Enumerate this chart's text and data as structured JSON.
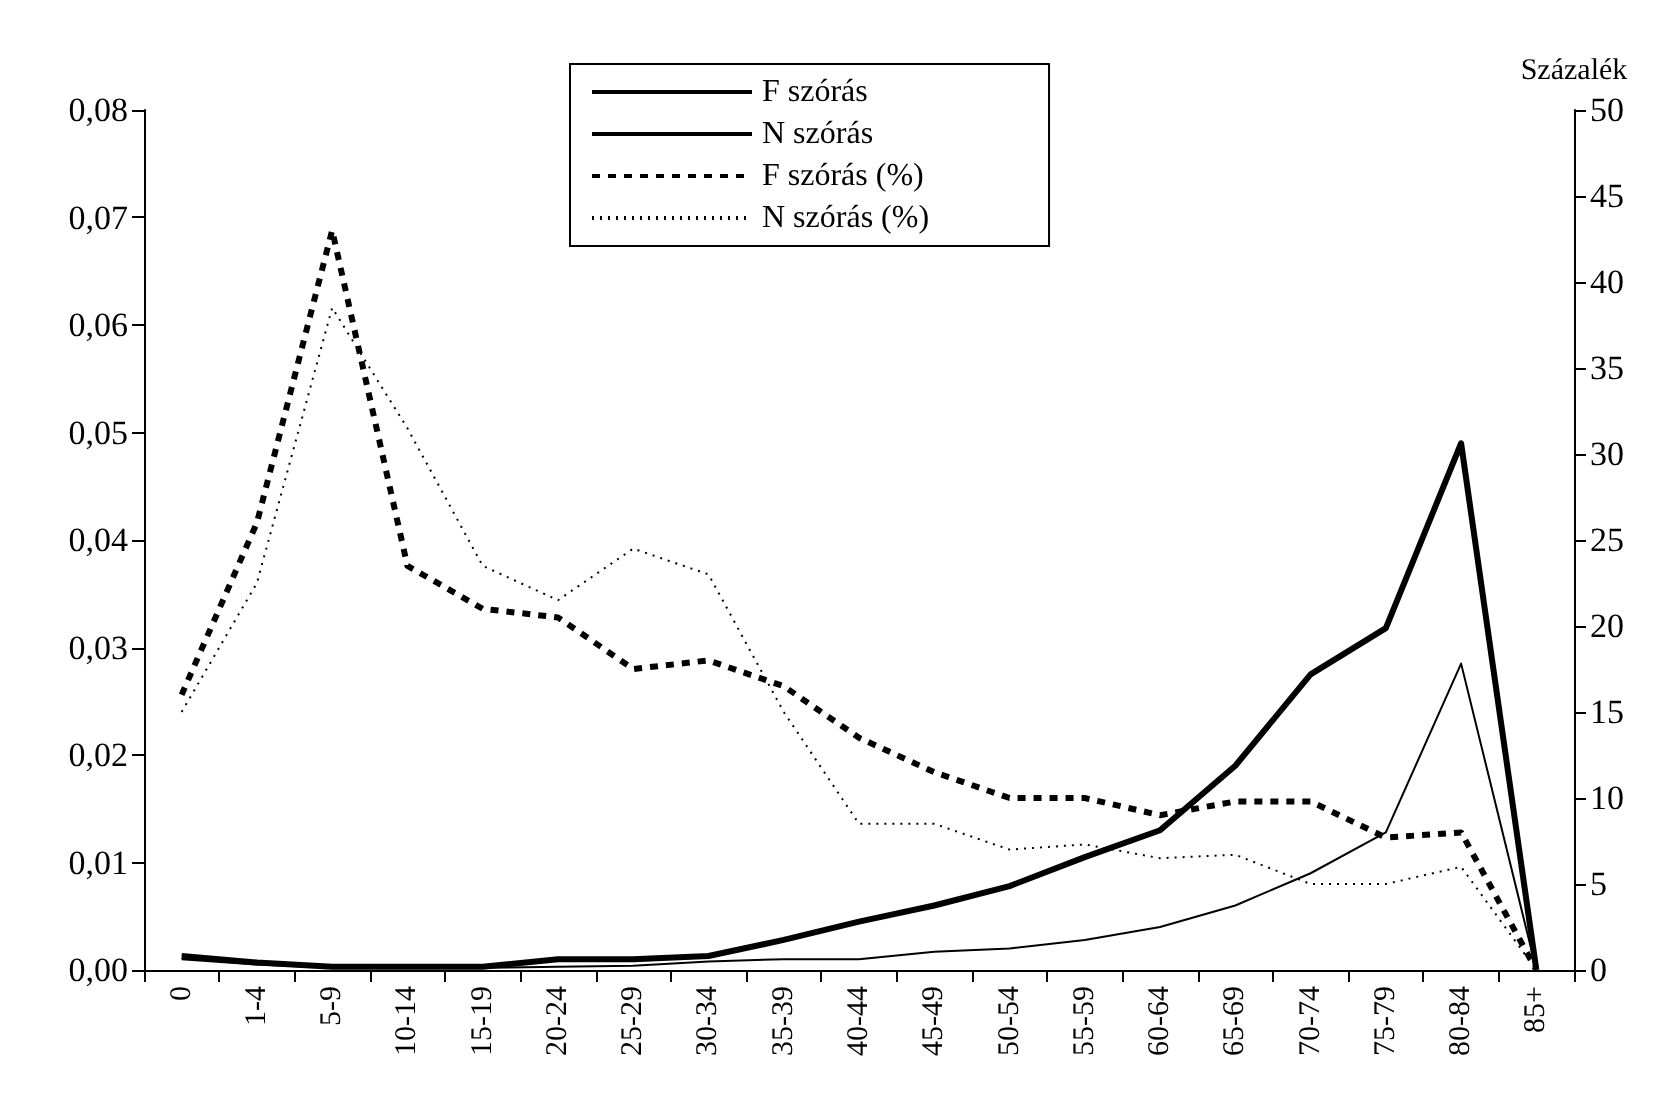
{
  "chart_data": {
    "type": "line",
    "y2label": "Százalék",
    "categories": [
      "0",
      "1-4",
      "5-9",
      "10-14",
      "15-19",
      "20-24",
      "25-29",
      "30-34",
      "35-39",
      "40-44",
      "45-49",
      "50-54",
      "55-59",
      "60-64",
      "65-69",
      "70-74",
      "75-79",
      "80-84",
      "85+"
    ],
    "series": [
      {
        "name": "F szórás",
        "color": "#000000",
        "line_style": "solid",
        "values": [
          0.0013,
          0.0007,
          0.0003,
          0.0003,
          0.0003,
          0.001,
          0.001,
          0.0013,
          0.0028,
          0.0045,
          0.006,
          0.0078,
          0.0105,
          0.013,
          0.019,
          0.0275,
          0.0318,
          0.049,
          0
        ]
      },
      {
        "name": "N szórás",
        "color": "#000000",
        "line_style": "solid",
        "values": [
          0.001,
          0.0005,
          0.0002,
          0.0002,
          0.0002,
          0.0003,
          0.0004,
          0.0008,
          0.001,
          0.001,
          0.0017,
          0.002,
          0.0028,
          0.004,
          0.006,
          0.009,
          0.0128,
          0.0285,
          0
        ]
      },
      {
        "name": "F szórás (%)",
        "color": "#000000",
        "line_style": "dashed",
        "axis": "y2",
        "values": [
          16,
          26,
          43,
          23.5,
          21,
          20.5,
          17.5,
          18,
          16.5,
          13.5,
          11.5,
          10,
          10,
          9,
          9.8,
          9.8,
          7.7,
          8,
          0
        ]
      },
      {
        "name": "N szórás (%)",
        "color": "#000000",
        "line_style": "dotted",
        "axis": "y2",
        "values": [
          15,
          22.5,
          38.5,
          31.5,
          23.5,
          21.5,
          24.5,
          23,
          15,
          8.5,
          8.5,
          7,
          7.3,
          6.5,
          6.7,
          5,
          5,
          6,
          0
        ]
      }
    ],
    "ylim": [
      0,
      0.08
    ],
    "yticks": [
      {
        "value": 0,
        "label": "0,00"
      },
      {
        "value": 0.01,
        "label": "0,01"
      },
      {
        "value": 0.02,
        "label": "0,02"
      },
      {
        "value": 0.03,
        "label": "0,03"
      },
      {
        "value": 0.04,
        "label": "0,04"
      },
      {
        "value": 0.05,
        "label": "0,05"
      },
      {
        "value": 0.06,
        "label": "0,06"
      },
      {
        "value": 0.07,
        "label": "0,07"
      },
      {
        "value": 0.08,
        "label": "0,08"
      }
    ],
    "y2lim": [
      0,
      50
    ],
    "y2ticks": [
      0,
      5,
      10,
      15,
      20,
      25,
      30,
      35,
      40,
      45,
      50
    ],
    "grid": false,
    "legend": "top",
    "marker": "none"
  }
}
